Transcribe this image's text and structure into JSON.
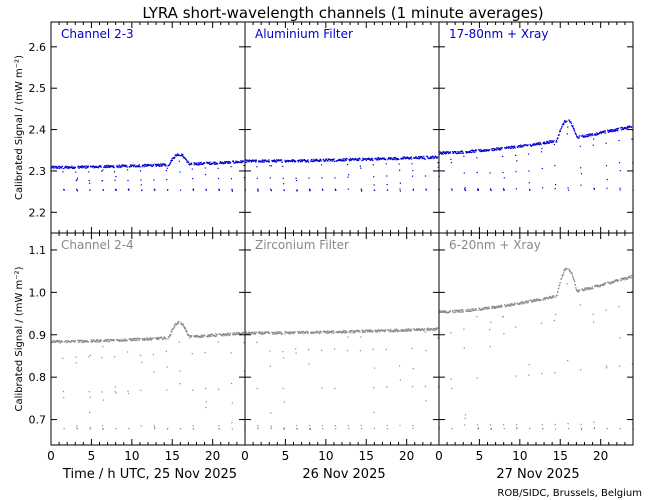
{
  "figure": {
    "title": "LYRA short-wavelength channels (1 minute averages)",
    "credit": "ROB/SIDC, Brussels, Belgium",
    "x_axis_title": "Time / h UTC, 25 Nov 2025",
    "day_labels": [
      "26 Nov 2025",
      "27 Nov 2025"
    ]
  },
  "chart_data": [
    {
      "type": "scatter",
      "row": "top",
      "ylabel": "Calibrated Signal / (mW m⁻²)",
      "ylim": [
        2.15,
        2.66
      ],
      "yticks": [
        2.2,
        2.3,
        2.4,
        2.5,
        2.6
      ],
      "color": "#0000cc",
      "panels": [
        {
          "label": "Channel 2-3",
          "day": "25 Nov 2025",
          "xlim": [
            0,
            24
          ],
          "xticks": [
            0,
            5,
            10,
            15,
            20
          ],
          "baseline_level": 2.31,
          "dip_level": 2.255,
          "bump_level": 2.345
        },
        {
          "label": "Aluminium Filter",
          "day": "26 Nov 2025",
          "xlim": [
            0,
            24
          ],
          "xticks": [
            0,
            5,
            10,
            15,
            20
          ],
          "baseline_level": 2.325,
          "dip_level": 2.255,
          "bump_level": 2.35
        },
        {
          "label": "17-80nm + Xray",
          "day": "27 Nov 2025",
          "xlim": [
            0,
            24
          ],
          "xticks": [
            0,
            5,
            10,
            15,
            20
          ],
          "baseline_level": 2.345,
          "dip_level": 2.255,
          "bump_level": 2.41
        }
      ]
    },
    {
      "type": "scatter",
      "row": "bottom",
      "ylabel": "Calibrated Signal / (mW m⁻²)",
      "ylim": [
        0.64,
        1.14
      ],
      "yticks": [
        0.7,
        0.8,
        0.9,
        1.0,
        1.1
      ],
      "color": "#888888",
      "panels": [
        {
          "label": "Channel 2-4",
          "day": "25 Nov 2025",
          "xlim": [
            0,
            24
          ],
          "xticks": [
            0,
            5,
            10,
            15,
            20
          ],
          "baseline_level": 0.885,
          "dip_level": 0.68,
          "bump_level": 0.935
        },
        {
          "label": "Zirconium Filter",
          "day": "26 Nov 2025",
          "xlim": [
            0,
            24
          ],
          "xticks": [
            0,
            5,
            10,
            15,
            20
          ],
          "baseline_level": 0.905,
          "dip_level": 0.68,
          "bump_level": 0.93
        },
        {
          "label": "6-20nm + Xray",
          "day": "27 Nov 2025",
          "xlim": [
            0,
            24
          ],
          "xticks": [
            0,
            5,
            10,
            15,
            20
          ],
          "baseline_level": 0.955,
          "dip_level": 0.68,
          "bump_level": 1.04
        }
      ]
    }
  ]
}
